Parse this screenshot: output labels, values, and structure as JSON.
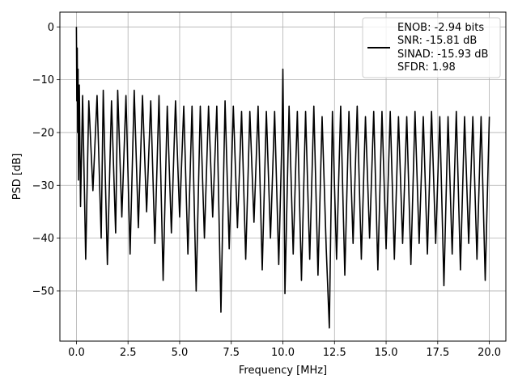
{
  "chart_data": {
    "type": "line",
    "title": "",
    "xlabel": "Frequency [MHz]",
    "ylabel": "PSD [dB]",
    "xlim": [
      -0.8,
      20.8
    ],
    "ylim": [
      -59.5,
      2.8
    ],
    "xticks": [
      0.0,
      2.5,
      5.0,
      7.5,
      10.0,
      12.5,
      15.0,
      17.5,
      20.0
    ],
    "xtick_labels": [
      "0.0",
      "2.5",
      "5.0",
      "7.5",
      "10.0",
      "12.5",
      "15.0",
      "17.5",
      "20.0"
    ],
    "yticks": [
      0,
      -10,
      -20,
      -30,
      -40,
      -50
    ],
    "ytick_labels": [
      "0",
      "−10",
      "−20",
      "−30",
      "−40",
      "−50"
    ],
    "grid": true,
    "line_color": "#000000",
    "legend_position": "top-right",
    "legend_lines": [
      "ENOB: -2.94 bits",
      "SNR: -15.81 dB",
      "SINAD: -15.93 dB",
      "SFDR: 1.98"
    ],
    "series": [
      {
        "points_note": "",
        "x": [
          0.0,
          0.02,
          0.04,
          0.06,
          0.08,
          0.1,
          0.14,
          0.2,
          0.3,
          0.45,
          0.6,
          0.8,
          1.0,
          1.2,
          1.3,
          1.5,
          1.7,
          1.9,
          2.0,
          2.2,
          2.4,
          2.6,
          2.8,
          3.0,
          3.2,
          3.4,
          3.6,
          3.8,
          4.0,
          4.2,
          4.4,
          4.6,
          4.8,
          5.0,
          5.2,
          5.4,
          5.6,
          5.8,
          6.0,
          6.2,
          6.4,
          6.6,
          6.8,
          7.0,
          7.2,
          7.4,
          7.6,
          7.8,
          8.0,
          8.2,
          8.4,
          8.6,
          8.8,
          9.0,
          9.2,
          9.4,
          9.6,
          9.8,
          9.96,
          10.0,
          10.04,
          10.1,
          10.3,
          10.5,
          10.7,
          10.9,
          11.1,
          11.3,
          11.5,
          11.7,
          11.9,
          12.1,
          12.25,
          12.4,
          12.6,
          12.8,
          13.0,
          13.2,
          13.4,
          13.6,
          13.8,
          14.0,
          14.2,
          14.4,
          14.6,
          14.8,
          15.0,
          15.2,
          15.4,
          15.6,
          15.8,
          16.0,
          16.2,
          16.4,
          16.6,
          16.8,
          17.0,
          17.2,
          17.4,
          17.6,
          17.8,
          18.0,
          18.2,
          18.4,
          18.6,
          18.8,
          19.0,
          19.2,
          19.4,
          19.6,
          19.8,
          20.0
        ],
        "y": [
          0.0,
          -14.0,
          -4.0,
          -20.0,
          -8.0,
          -29.0,
          -11.0,
          -34.0,
          -13.0,
          -44.0,
          -14.0,
          -31.0,
          -13.0,
          -40.0,
          -12.0,
          -45.0,
          -14.0,
          -39.0,
          -12.0,
          -36.0,
          -13.0,
          -43.0,
          -12.0,
          -38.0,
          -13.0,
          -35.0,
          -14.0,
          -41.0,
          -13.0,
          -48.0,
          -15.0,
          -39.0,
          -14.0,
          -36.0,
          -15.0,
          -43.0,
          -15.0,
          -50.0,
          -15.0,
          -40.0,
          -15.0,
          -36.0,
          -15.0,
          -54.0,
          -14.0,
          -42.0,
          -15.0,
          -38.0,
          -16.0,
          -44.0,
          -16.0,
          -37.0,
          -15.0,
          -46.0,
          -16.0,
          -40.0,
          -16.0,
          -45.0,
          -20.0,
          -8.0,
          -22.0,
          -50.5,
          -15.0,
          -43.0,
          -16.0,
          -48.0,
          -16.0,
          -44.0,
          -15.0,
          -47.0,
          -17.0,
          -42.0,
          -57.0,
          -16.0,
          -44.0,
          -15.0,
          -47.0,
          -16.0,
          -41.0,
          -15.0,
          -44.0,
          -17.0,
          -40.0,
          -16.0,
          -46.0,
          -16.0,
          -42.0,
          -16.0,
          -44.0,
          -17.0,
          -41.0,
          -17.0,
          -45.0,
          -16.0,
          -41.0,
          -17.0,
          -43.0,
          -16.0,
          -41.0,
          -17.0,
          -49.0,
          -17.0,
          -43.0,
          -16.0,
          -46.0,
          -17.0,
          -41.0,
          -17.0,
          -44.0,
          -17.0,
          -48.0,
          -17.0
        ]
      }
    ]
  }
}
